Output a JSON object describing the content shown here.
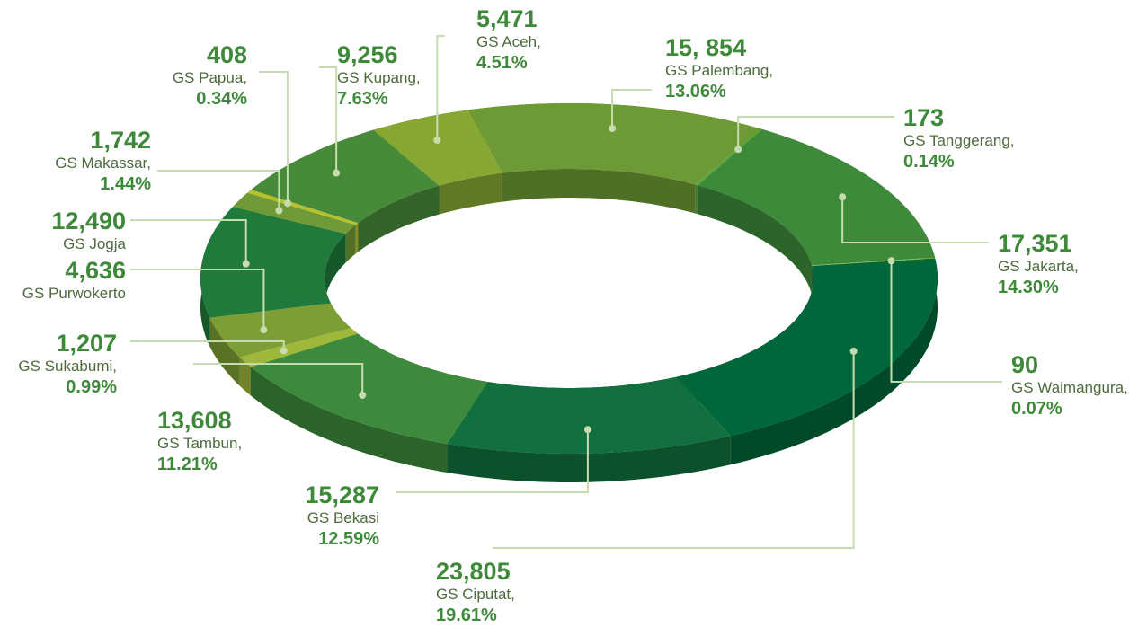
{
  "chart_data": {
    "type": "donut3d",
    "categories": [
      "GS Aceh,",
      "GS Palembang,",
      "GS Tanggerang,",
      "GS Jakarta,",
      "GS Waimangura,",
      "GS Ciputat,",
      "GS Bekasi",
      "GS Tambun,",
      "GS Sukabumi,",
      "GS Purwokerto",
      "GS Jogja",
      "GS Makassar,",
      "GS Papua,",
      "GS Kupang,"
    ],
    "values": [
      5471,
      15854,
      173,
      17351,
      90,
      23805,
      15287,
      13608,
      1207,
      4636,
      12490,
      1742,
      408,
      9256
    ],
    "value_labels": [
      "5,471",
      "15, 854",
      "173",
      "17,351",
      "90",
      "23,805",
      "15,287",
      "13,608",
      "1,207",
      "4,636",
      "12,490",
      "1,742",
      "408",
      "9,256"
    ],
    "shares": [
      4.51,
      13.06,
      0.14,
      14.3,
      0.07,
      19.61,
      12.59,
      11.21,
      0.99,
      null,
      null,
      1.44,
      0.34,
      7.63
    ],
    "share_labels": [
      "4.51%",
      "13.06%",
      "0.14%",
      "14.30%",
      "0.07%",
      "19.61%",
      "12.59%",
      "11.21%",
      "0.99%",
      null,
      null,
      "1.44%",
      "0.34%",
      "7.63%"
    ],
    "colors": [
      "#86a832",
      "#6e9a36",
      "#5aa63c",
      "#3d8b3a",
      "#8cb83a",
      "#00673a",
      "#12703e",
      "#3e8a3c",
      "#9fb83a",
      "#7c9e34",
      "#1f7a3b",
      "#6f9a36",
      "#b5c22e",
      "#478a3a"
    ]
  }
}
